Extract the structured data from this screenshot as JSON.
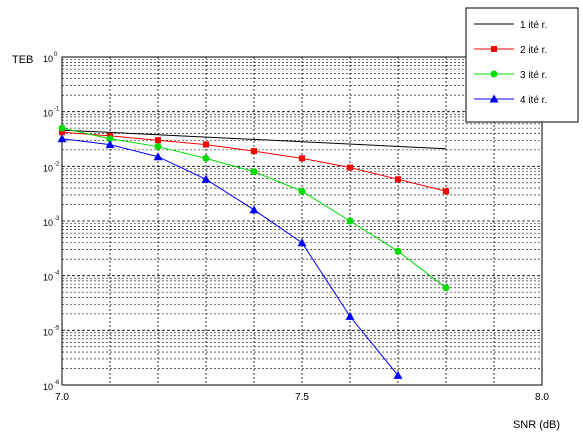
{
  "chart_data": {
    "type": "line",
    "ylabel": "TEB",
    "xlabel": "SNR (dB)",
    "y_scale": "log",
    "ylim": [
      1e-06,
      1
    ],
    "xlim": [
      7.0,
      8.0
    ],
    "x_ticks": [
      "7.0",
      "7.5",
      "8.0"
    ],
    "y_ticks": [
      {
        "value": 1,
        "mantissa": "10",
        "exp": "0"
      },
      {
        "value": 0.1,
        "mantissa": "10",
        "exp": "-1"
      },
      {
        "value": 0.01,
        "mantissa": "10",
        "exp": "-2"
      },
      {
        "value": 0.001,
        "mantissa": "10",
        "exp": "-3"
      },
      {
        "value": 0.0001,
        "mantissa": "10",
        "exp": "-4"
      },
      {
        "value": 1e-05,
        "mantissa": "10",
        "exp": "-5"
      },
      {
        "value": 1e-06,
        "mantissa": "10",
        "exp": "-6"
      }
    ],
    "grid": true,
    "legend_position": "top-right",
    "series": [
      {
        "name": "1 ité r.",
        "color": "#000000",
        "marker": "none",
        "x": [
          7.0,
          7.8
        ],
        "y": [
          0.046,
          0.021
        ]
      },
      {
        "name": "2 ité r.",
        "color": "#ff0000",
        "marker": "square",
        "x": [
          7.0,
          7.1,
          7.2,
          7.3,
          7.4,
          7.5,
          7.6,
          7.7,
          7.8
        ],
        "y": [
          0.042,
          0.036,
          0.03,
          0.025,
          0.019,
          0.014,
          0.0095,
          0.0058,
          0.0035
        ]
      },
      {
        "name": "3 ité r.",
        "color": "#00dd00",
        "marker": "circle",
        "x": [
          7.0,
          7.1,
          7.2,
          7.3,
          7.4,
          7.5,
          7.6,
          7.7,
          7.8
        ],
        "y": [
          0.05,
          0.032,
          0.023,
          0.014,
          0.008,
          0.0035,
          0.001,
          0.00028,
          6e-05
        ]
      },
      {
        "name": "4 ité r.",
        "color": "#0000ff",
        "marker": "triangle",
        "x": [
          7.0,
          7.1,
          7.2,
          7.3,
          7.4,
          7.5,
          7.6,
          7.7
        ],
        "y": [
          0.032,
          0.025,
          0.015,
          0.0058,
          0.0016,
          0.0004,
          1.8e-05,
          1.5e-06
        ]
      }
    ]
  }
}
